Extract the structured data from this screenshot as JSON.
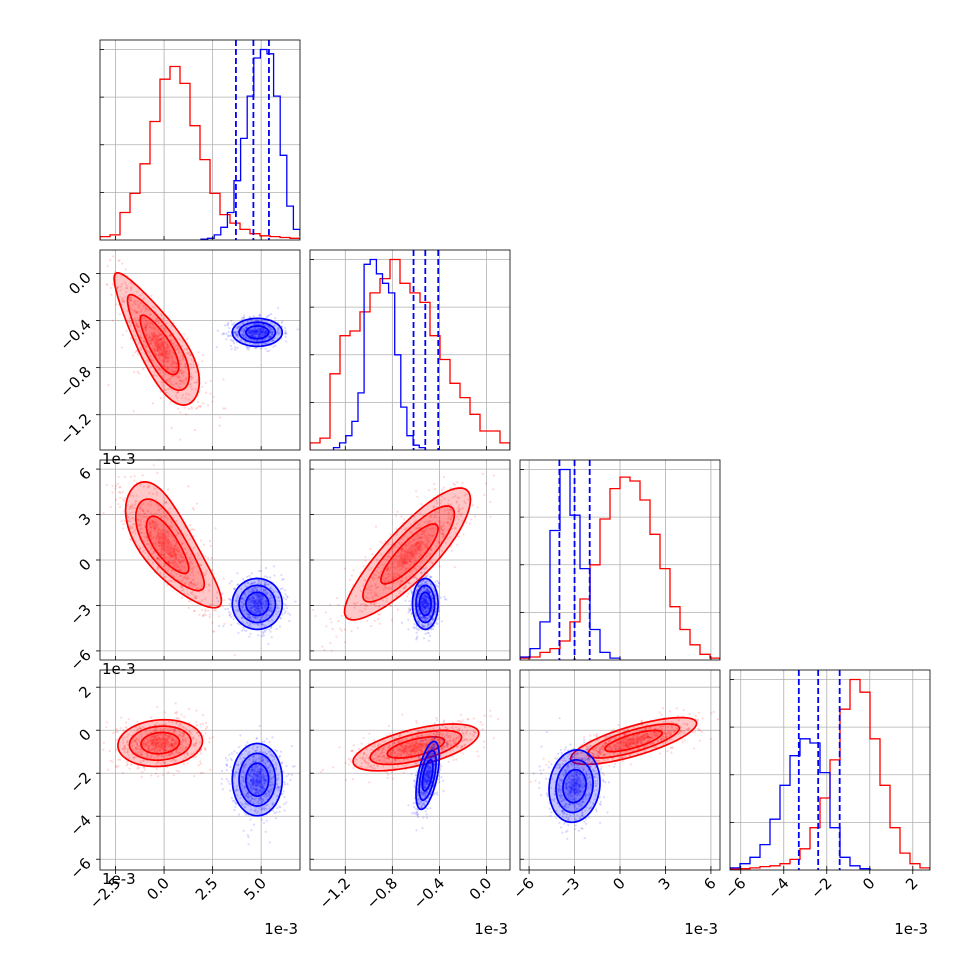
{
  "chart_data": {
    "type": "corner",
    "colors": {
      "series_a": "#ff0000",
      "series_b": "#0000ff"
    },
    "grid": true,
    "legend": "none",
    "parameters": [
      {
        "offset_text": "1e-3",
        "ticks": [
          "−2.5",
          "0.0",
          "2.5",
          "5.0"
        ],
        "tick_values": [
          -2.5,
          0.0,
          2.5,
          5.0
        ],
        "range": [
          -3.3,
          7.0
        ]
      },
      {
        "offset_text": "1e-3",
        "ticks": [
          "−1.2",
          "−0.8",
          "−0.4",
          "0.0"
        ],
        "tick_values": [
          -1.2,
          -0.8,
          -0.4,
          0.0
        ],
        "range": [
          -1.5,
          0.2
        ]
      },
      {
        "offset_text": "1e-3",
        "ticks": [
          "−6",
          "−3",
          "0",
          "3",
          "6"
        ],
        "tick_values": [
          -6,
          -3,
          0,
          3,
          6
        ],
        "range": [
          -6.6,
          6.6
        ]
      },
      {
        "offset_text": "1e-3",
        "ticks": [
          "−6",
          "−4",
          "−2",
          "0",
          "2"
        ],
        "tick_values": [
          -6,
          -4,
          -2,
          0,
          2
        ],
        "range": [
          -6.5,
          2.8
        ]
      }
    ],
    "marginals": [
      {
        "series_a": {
          "edges_start": -3.3,
          "bin_width": 0.515,
          "counts": [
            0.8,
            1.2,
            6.5,
            11,
            18,
            28,
            38,
            41,
            37,
            27,
            19,
            11,
            6,
            4,
            2.5,
            1.5,
            1,
            0.8,
            0.6,
            0.4
          ]
        },
        "series_b": {
          "edges_start": 1.9,
          "bin_width": 0.34,
          "counts": [
            0.2,
            0.4,
            1.2,
            3,
            6.5,
            14,
            24,
            34,
            43,
            45,
            44,
            34,
            20,
            8,
            2.5,
            1
          ]
        },
        "quantiles_b": [
          3.7,
          4.6,
          5.4
        ]
      },
      {
        "series_a": {
          "edges_start": -1.5,
          "bin_width": 0.085,
          "counts": [
            1.5,
            2.5,
            16,
            24,
            25,
            29,
            33,
            36,
            40,
            35,
            33,
            31,
            24,
            19,
            14,
            11,
            7.5,
            4,
            4,
            1.5
          ]
        },
        "series_b": {
          "edges_start": -1.3,
          "bin_width": 0.052,
          "counts": [
            0.5,
            1.5,
            3,
            6,
            12,
            39,
            40,
            37,
            35,
            33,
            20,
            9,
            3,
            1,
            0.5
          ]
        },
        "quantiles_b": [
          -0.62,
          -0.52,
          -0.41
        ]
      },
      {
        "series_a": {
          "edges_start": -6.6,
          "bin_width": 0.66,
          "counts": [
            0.5,
            0.8,
            2,
            3,
            5,
            10,
            16,
            25,
            37,
            45,
            48,
            47,
            42,
            33,
            24,
            14,
            8,
            4,
            1.5,
            0.5
          ]
        },
        "series_b": {
          "edges_start": -6.6,
          "bin_width": 0.66,
          "counts": [
            0.8,
            3,
            10,
            34,
            50,
            38,
            24,
            8,
            2,
            0.5
          ]
        },
        "quantiles_b": [
          -4.0,
          -3.0,
          -2.0
        ]
      },
      {
        "series_a": {
          "edges_start": -6.5,
          "bin_width": 0.465,
          "counts": [
            0.2,
            0.3,
            0.5,
            0.8,
            1,
            1.5,
            2.5,
            5,
            10,
            17,
            26,
            38,
            45,
            42,
            31,
            20,
            10,
            4,
            1.5,
            0.5
          ]
        },
        "series_b": {
          "edges_start": -6.5,
          "bin_width": 0.465,
          "counts": [
            0.5,
            1.5,
            3,
            6,
            12,
            20,
            27,
            31,
            30,
            23,
            10,
            3,
            1,
            0.3
          ]
        },
        "quantiles_b": [
          -3.3,
          -2.4,
          -1.4
        ]
      }
    ],
    "joint": [
      {
        "row": 1,
        "col": 0,
        "series_a": {
          "mean": [
            -0.2,
            -0.62
          ],
          "sd": [
            1.1,
            0.28
          ],
          "corr": -0.8,
          "bend": [
            -0.35,
            0.75
          ]
        },
        "series_b": {
          "mean": [
            4.8,
            -0.5
          ],
          "sd": [
            0.65,
            0.06
          ],
          "corr": 0.0,
          "bend": [
            0,
            0
          ]
        }
      },
      {
        "row": 2,
        "col": 0,
        "series_a": {
          "mean": [
            0.1,
            1.0
          ],
          "sd": [
            1.2,
            2.1
          ],
          "corr": -0.75,
          "bend": [
            0.8,
            0
          ]
        },
        "series_b": {
          "mean": [
            4.8,
            -2.9
          ],
          "sd": [
            0.65,
            0.85
          ],
          "corr": 0.0,
          "bend": [
            0,
            0
          ]
        }
      },
      {
        "row": 2,
        "col": 1,
        "series_a": {
          "mean": [
            -0.65,
            0.4
          ],
          "sd": [
            0.27,
            2.2
          ],
          "corr": 0.85,
          "bend": [
            -0.15,
            0
          ]
        },
        "series_b": {
          "mean": [
            -0.52,
            -2.9
          ],
          "sd": [
            0.055,
            0.85
          ],
          "corr": 0.0,
          "bend": [
            0,
            0
          ]
        }
      },
      {
        "row": 3,
        "col": 0,
        "series_a": {
          "mean": [
            -0.2,
            -0.6
          ],
          "sd": [
            1.1,
            0.55
          ],
          "corr": 0.1,
          "bend": [
            0,
            0
          ]
        },
        "series_b": {
          "mean": [
            4.8,
            -2.3
          ],
          "sd": [
            0.65,
            0.85
          ],
          "corr": 0.0,
          "bend": [
            0,
            0
          ]
        }
      },
      {
        "row": 3,
        "col": 1,
        "series_a": {
          "mean": [
            -0.6,
            -0.8
          ],
          "sd": [
            0.27,
            0.55
          ],
          "corr": 0.6,
          "bend": [
            0,
            0
          ]
        },
        "series_b": {
          "mean": [
            -0.5,
            -2.1
          ],
          "sd": [
            0.05,
            0.8
          ],
          "corr": 0.55,
          "bend": [
            0,
            0
          ]
        }
      },
      {
        "row": 3,
        "col": 2,
        "series_a": {
          "mean": [
            0.9,
            -0.5
          ],
          "sd": [
            2.1,
            0.55
          ],
          "corr": 0.75,
          "bend": [
            0,
            0
          ]
        },
        "series_b": {
          "mean": [
            -3.0,
            -2.6
          ],
          "sd": [
            0.85,
            0.85
          ],
          "corr": 0.1,
          "bend": [
            0,
            0
          ]
        }
      }
    ]
  }
}
